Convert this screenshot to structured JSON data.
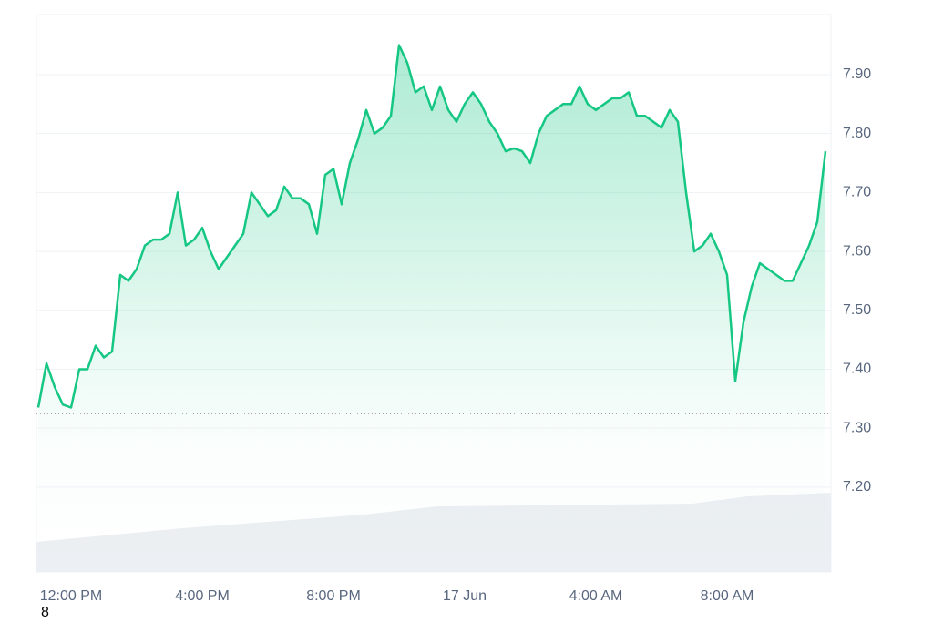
{
  "chart_data": {
    "type": "line",
    "categories": [
      null,
      null,
      null,
      null,
      "12:00 PM",
      null,
      null,
      null,
      null,
      null,
      null,
      null,
      null,
      null,
      null,
      null,
      null,
      null,
      null,
      null,
      "4:00 PM",
      null,
      null,
      null,
      null,
      null,
      null,
      null,
      null,
      null,
      null,
      null,
      null,
      null,
      null,
      null,
      "8:00 PM",
      null,
      null,
      null,
      null,
      null,
      null,
      null,
      null,
      null,
      null,
      null,
      null,
      null,
      null,
      null,
      "17 Jun",
      null,
      null,
      null,
      null,
      null,
      null,
      null,
      null,
      null,
      null,
      null,
      null,
      null,
      null,
      null,
      "4:00 AM",
      null,
      null,
      null,
      null,
      null,
      null,
      null,
      null,
      null,
      null,
      null,
      null,
      null,
      null,
      null,
      "8:00 AM",
      null,
      null,
      null,
      null,
      null,
      null,
      null,
      null,
      null,
      null,
      null,
      null
    ],
    "values": [
      7.335,
      7.41,
      7.37,
      7.34,
      7.335,
      7.4,
      7.4,
      7.44,
      7.42,
      7.43,
      7.56,
      7.55,
      7.57,
      7.61,
      7.62,
      7.62,
      7.63,
      7.7,
      7.61,
      7.62,
      7.64,
      7.6,
      7.57,
      7.59,
      7.61,
      7.63,
      7.7,
      7.68,
      7.66,
      7.67,
      7.71,
      7.69,
      7.69,
      7.68,
      7.63,
      7.73,
      7.74,
      7.68,
      7.75,
      7.79,
      7.84,
      7.8,
      7.81,
      7.83,
      7.95,
      7.92,
      7.87,
      7.88,
      7.84,
      7.88,
      7.84,
      7.82,
      7.85,
      7.87,
      7.85,
      7.82,
      7.8,
      7.77,
      7.775,
      7.77,
      7.75,
      7.8,
      7.83,
      7.84,
      7.85,
      7.85,
      7.88,
      7.85,
      7.84,
      7.85,
      7.86,
      7.86,
      7.87,
      7.83,
      7.83,
      7.82,
      7.81,
      7.84,
      7.82,
      7.7,
      7.6,
      7.61,
      7.63,
      7.6,
      7.56,
      7.38,
      7.48,
      7.54,
      7.58,
      7.57,
      7.56,
      7.55,
      7.55,
      7.58,
      7.61,
      7.65,
      7.77
    ],
    "color": "#16c784",
    "reference_line": 7.325,
    "ylim": [
      7.056,
      8.002
    ],
    "yticks": [
      {
        "value": 7.2,
        "label": "7.20"
      },
      {
        "value": 7.3,
        "label": "7.30"
      },
      {
        "value": 7.4,
        "label": "7.40"
      },
      {
        "value": 7.5,
        "label": "7.50"
      },
      {
        "value": 7.6,
        "label": "7.60"
      },
      {
        "value": 7.7,
        "label": "7.70"
      },
      {
        "value": 7.8,
        "label": "7.80"
      },
      {
        "value": 7.9,
        "label": "7.90"
      }
    ],
    "grid": true,
    "footnote": "8"
  }
}
